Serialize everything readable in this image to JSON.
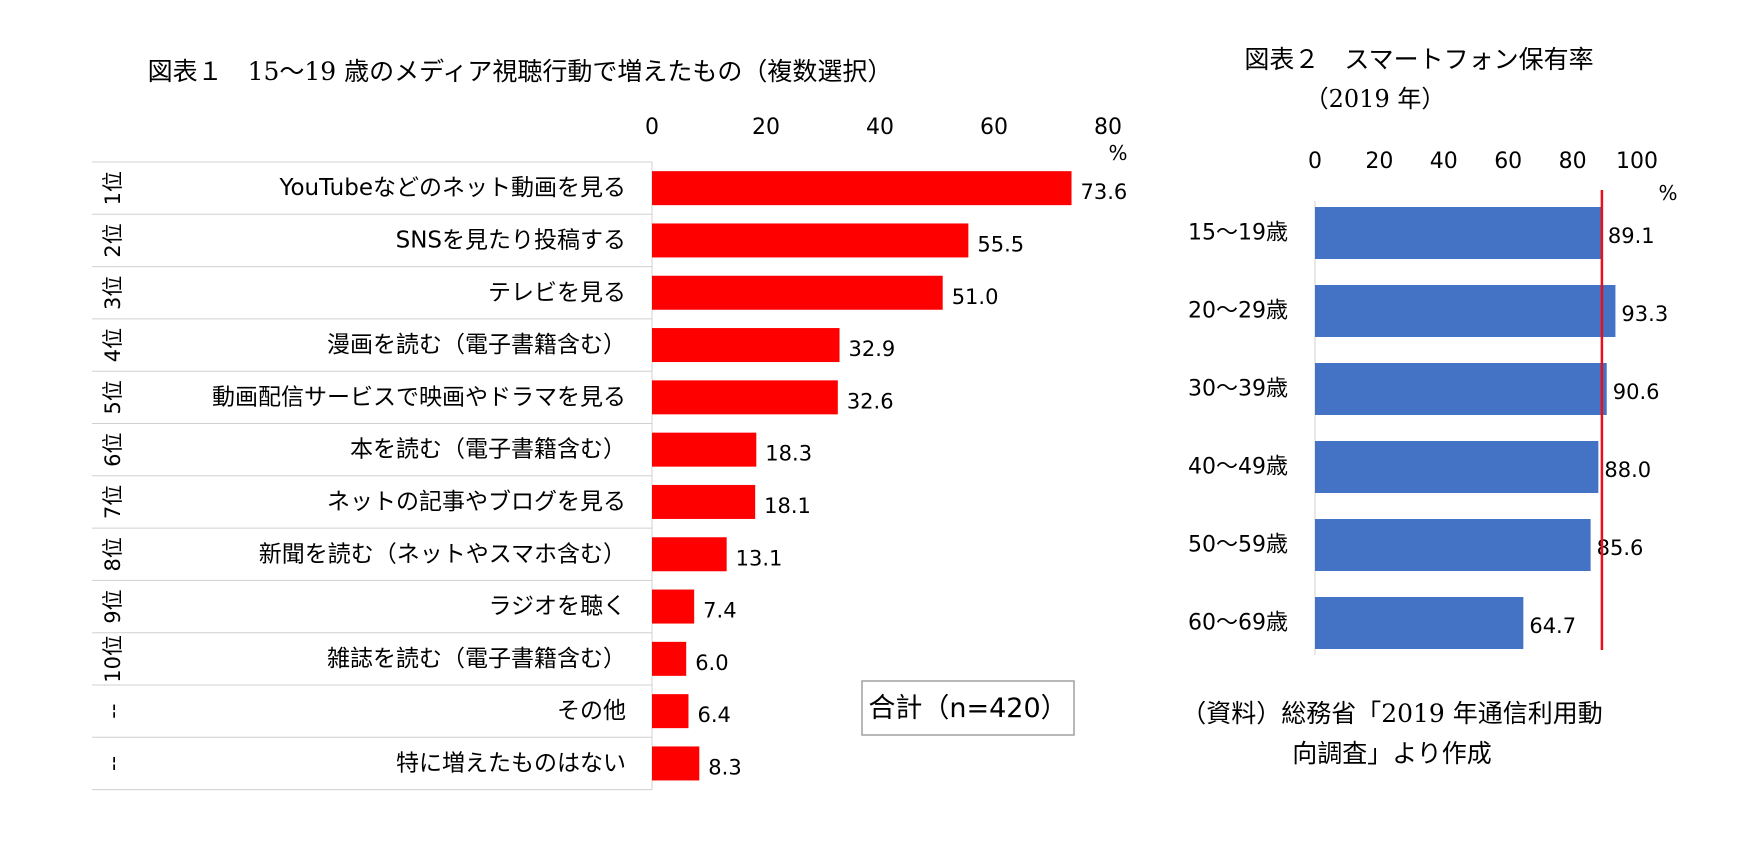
{
  "chart_data": [
    {
      "type": "bar",
      "orientation": "horizontal",
      "title": "図表１　15～19 歳のメディア視聴行動で増えたもの（複数選択）",
      "unit": "%",
      "xlim": [
        0,
        80
      ],
      "ticks": [
        0,
        20,
        40,
        60,
        80
      ],
      "ranks": [
        "1位",
        "2位",
        "3位",
        "4位",
        "5位",
        "6位",
        "7位",
        "8位",
        "9位",
        "10位",
        "--",
        "--"
      ],
      "categories": [
        "YouTubeなどのネット動画を見る",
        "SNSを見たり投稿する",
        "テレビを見る",
        "漫画を読む（電子書籍含む）",
        "動画配信サービスで映画やドラマを見る",
        "本を読む（電子書籍含む）",
        "ネットの記事やブログを見る",
        "新聞を読む（ネットやスマホ含む）",
        "ラジオを聴く",
        "雑誌を読む（電子書籍含む）",
        "その他",
        "特に増えたものはない"
      ],
      "values": [
        73.6,
        55.5,
        51.0,
        32.9,
        32.6,
        18.3,
        18.1,
        13.1,
        7.4,
        6.0,
        6.4,
        8.3
      ],
      "value_labels": [
        "73.6",
        "55.5",
        "51.0",
        "32.9",
        "32.6",
        "18.3",
        "18.1",
        "13.1",
        "7.4",
        "6.0",
        "6.4",
        "8.3"
      ],
      "bar_color": "#ff0000",
      "note": "合計（n=420）"
    },
    {
      "type": "bar",
      "orientation": "horizontal",
      "title_line1": "図表２　スマートフォン保有率",
      "title_line2": "（2019 年）",
      "unit": "%",
      "xlim": [
        0,
        100
      ],
      "ticks": [
        0,
        20,
        40,
        60,
        80,
        100
      ],
      "categories": [
        "15～19歳",
        "20～29歳",
        "30～39歳",
        "40～49歳",
        "50～59歳",
        "60～69歳"
      ],
      "values": [
        89.1,
        93.3,
        90.6,
        88.0,
        85.6,
        64.7
      ],
      "value_labels": [
        "89.1",
        "93.3",
        "90.6",
        "88.0",
        "85.6",
        "64.7"
      ],
      "bar_color": "#4472c4",
      "reference_line": 89.1,
      "reference_color": "#e8101a",
      "source_line1": "（資料）総務省「2019 年通信利用動",
      "source_line2": "向調査」より作成"
    }
  ]
}
